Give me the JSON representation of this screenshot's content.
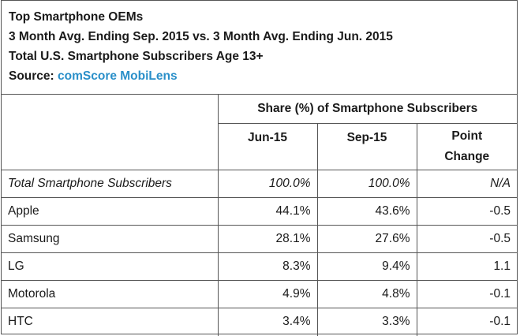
{
  "header": {
    "title": "Top Smartphone OEMs",
    "period": "3 Month Avg. Ending Sep. 2015 vs. 3 Month Avg. Ending Jun. 2015",
    "population": "Total U.S. Smartphone Subscribers Age 13+",
    "source_label": "Source: ",
    "source_name": "comScore MobiLens"
  },
  "table": {
    "group_header": "Share (%) of Smartphone Subscribers",
    "col_jun": "Jun-15",
    "col_sep": "Sep-15",
    "col_change_line1": "Point",
    "col_change_line2": "Change",
    "total_row": {
      "label": "Total Smartphone Subscribers",
      "jun": "100.0%",
      "sep": "100.0%",
      "change": "N/A"
    },
    "rows": [
      {
        "label": "Apple",
        "jun": "44.1%",
        "sep": "43.6%",
        "change": "-0.5"
      },
      {
        "label": "Samsung",
        "jun": "28.1%",
        "sep": "27.6%",
        "change": "-0.5"
      },
      {
        "label": "LG",
        "jun": "8.3%",
        "sep": "9.4%",
        "change": "1.1"
      },
      {
        "label": "Motorola",
        "jun": "4.9%",
        "sep": "4.8%",
        "change": "-0.1"
      },
      {
        "label": "HTC",
        "jun": "3.4%",
        "sep": "3.3%",
        "change": "-0.1"
      }
    ]
  }
}
